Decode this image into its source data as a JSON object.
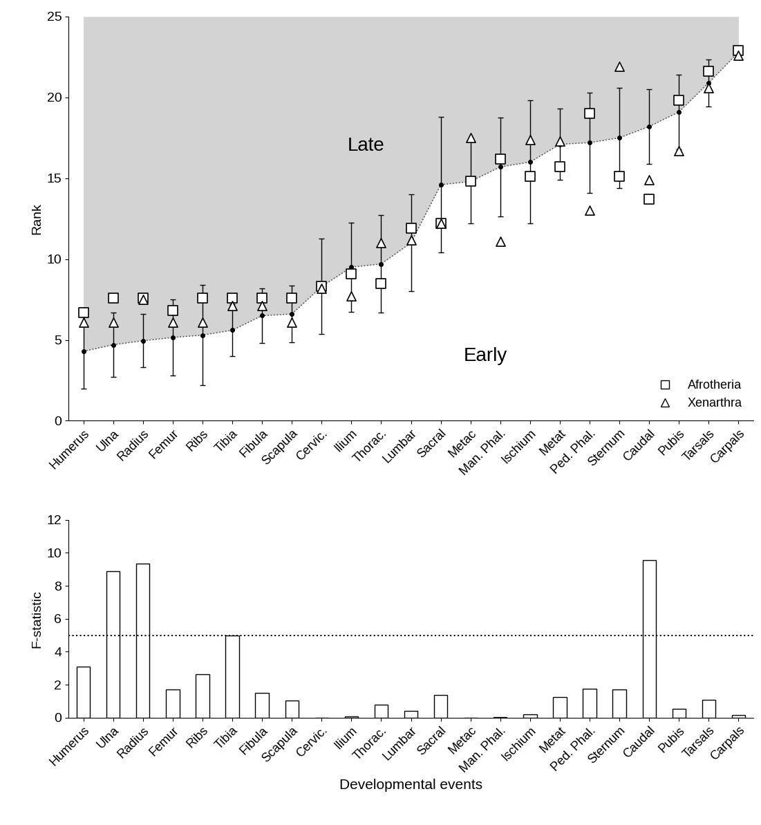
{
  "chart_data": [
    {
      "type": "scatter",
      "y_label": "Rank",
      "categories": [
        "Humerus",
        "Ulna",
        "Radius",
        "Femur",
        "Ribs",
        "Tibia",
        "Fibula",
        "Scapula",
        "Cervic.",
        "Ilium",
        "Thorac.",
        "Lumbar",
        "Sacral",
        "Metac",
        "Man. Phal.",
        "Ischium",
        "Metat",
        "Ped. Phal.",
        "Sternum",
        "Caudal",
        "Pubis",
        "Tarsals",
        "Carpals"
      ],
      "values": [
        4.3,
        4.7,
        4.95,
        5.15,
        5.3,
        5.6,
        6.5,
        6.6,
        8.3,
        9.5,
        9.7,
        11.0,
        14.6,
        14.8,
        15.7,
        16.0,
        17.1,
        17.2,
        17.5,
        18.2,
        19.1,
        20.9,
        22.8
      ],
      "errors": [
        2.3,
        2.0,
        1.65,
        2.35,
        3.1,
        1.6,
        1.7,
        1.75,
        2.95,
        2.75,
        3.0,
        3.0,
        4.2,
        2.6,
        3.05,
        3.8,
        2.2,
        3.1,
        3.1,
        2.3,
        2.3,
        1.45,
        0.2
      ],
      "color": "#d3d3d3",
      "series": [
        {
          "name": "Afrotheria",
          "color": "#000000",
          "marker": "square",
          "values": [
            6.7,
            7.6,
            7.6,
            6.8,
            7.6,
            7.6,
            7.6,
            7.6,
            8.3,
            9.1,
            8.5,
            11.9,
            12.2,
            14.8,
            16.2,
            15.1,
            15.7,
            19.0,
            15.1,
            13.7,
            19.8,
            21.6,
            22.9
          ]
        },
        {
          "name": "Xenarthra",
          "color": "#000000",
          "marker": "triangle",
          "values": [
            6.1,
            6.1,
            7.5,
            6.1,
            6.1,
            7.1,
            7.1,
            6.1,
            8.2,
            7.7,
            11.0,
            11.2,
            12.2,
            17.5,
            11.1,
            17.4,
            17.3,
            13.0,
            21.9,
            14.9,
            16.7,
            20.6,
            22.6
          ]
        }
      ],
      "annotations": [
        "Late",
        "Early"
      ],
      "ylim": [
        0,
        25
      ],
      "yticks": [
        0,
        5,
        10,
        15,
        20,
        25
      ],
      "legend": "lower right"
    },
    {
      "type": "bar",
      "y_label": "F-statistic",
      "x_label": "Developmental events",
      "categories": [
        "Humerus",
        "Ulna",
        "Radius",
        "Femur",
        "Ribs",
        "Tibia",
        "Fibula",
        "Scapula",
        "Cervic.",
        "Ilium",
        "Thorac.",
        "Lumbar",
        "Sacral",
        "Metac",
        "Man. Phal.",
        "Ischium",
        "Metat",
        "Ped. Phal.",
        "Sternum",
        "Caudal",
        "Pubis",
        "Tarsals",
        "Carpals"
      ],
      "values": [
        3.1,
        8.9,
        9.35,
        1.7,
        2.65,
        5.0,
        1.5,
        1.05,
        0,
        0.1,
        0.8,
        0.4,
        1.4,
        0,
        0.05,
        0.2,
        1.25,
        1.75,
        1.7,
        9.55,
        0.55,
        1.1,
        0.15
      ],
      "threshold": 5,
      "color": "#ffffff",
      "ylim": [
        0,
        12
      ],
      "yticks": [
        0,
        2,
        4,
        6,
        8,
        10,
        12
      ]
    }
  ]
}
